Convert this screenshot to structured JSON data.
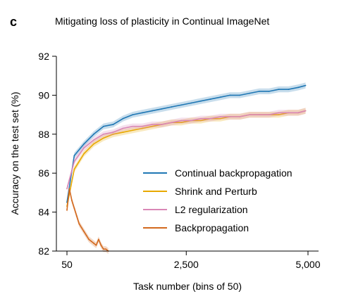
{
  "panel_label": "c",
  "chart_data": {
    "type": "line",
    "title": "Mitigating loss of plasticity in Continual ImageNet",
    "xlabel": "Task number (bins of 50)",
    "ylabel": "Accuracy on the test set (%)",
    "xlim": [
      50,
      5000
    ],
    "ylim": [
      82,
      92
    ],
    "xticks": [
      50,
      2500,
      5000
    ],
    "xtick_labels": [
      "50",
      "2,500",
      "5,000"
    ],
    "yticks": [
      82,
      84,
      86,
      88,
      90,
      92
    ],
    "ytick_labels": [
      "82",
      "84",
      "86",
      "88",
      "90",
      "92"
    ],
    "grid": false,
    "legend_position": "lower-right",
    "x": [
      50,
      200,
      400,
      600,
      800,
      1000,
      1200,
      1400,
      1600,
      1800,
      2000,
      2200,
      2400,
      2600,
      2800,
      3000,
      3200,
      3400,
      3600,
      3800,
      4000,
      4200,
      4400,
      4600,
      4800,
      4950
    ],
    "series": [
      {
        "name": "Continual backpropagation",
        "color": "#1f77b4",
        "values": [
          84.5,
          86.9,
          87.5,
          88.0,
          88.4,
          88.5,
          88.8,
          89.0,
          89.1,
          89.2,
          89.3,
          89.4,
          89.5,
          89.6,
          89.7,
          89.8,
          89.9,
          90.0,
          90.0,
          90.1,
          90.2,
          90.2,
          90.3,
          90.3,
          90.4,
          90.5
        ]
      },
      {
        "name": "Shrink and Perturb",
        "color": "#e8a800",
        "values": [
          84.3,
          86.2,
          87.0,
          87.5,
          87.8,
          88.0,
          88.1,
          88.2,
          88.3,
          88.4,
          88.5,
          88.6,
          88.6,
          88.7,
          88.7,
          88.8,
          88.8,
          88.9,
          88.9,
          89.0,
          89.0,
          89.0,
          89.0,
          89.1,
          89.1,
          89.2
        ]
      },
      {
        "name": "L2 regularization",
        "color": "#d987b6",
        "values": [
          85.2,
          86.6,
          87.3,
          87.7,
          88.0,
          88.1,
          88.3,
          88.4,
          88.4,
          88.5,
          88.5,
          88.6,
          88.7,
          88.7,
          88.8,
          88.8,
          88.9,
          88.9,
          88.9,
          89.0,
          89.0,
          89.0,
          89.1,
          89.1,
          89.1,
          89.2
        ]
      },
      {
        "name": "Backpropagation",
        "color": "#d2691e",
        "x": [
          50,
          100,
          150,
          200,
          250,
          300,
          350,
          400,
          450,
          500,
          550,
          600,
          650,
          700,
          750,
          800,
          850,
          900
        ],
        "values": [
          84.1,
          85.2,
          84.6,
          84.2,
          83.8,
          83.4,
          83.2,
          83.0,
          82.8,
          82.6,
          82.5,
          82.4,
          82.3,
          82.6,
          82.3,
          82.1,
          82.1,
          82.0
        ]
      }
    ]
  }
}
